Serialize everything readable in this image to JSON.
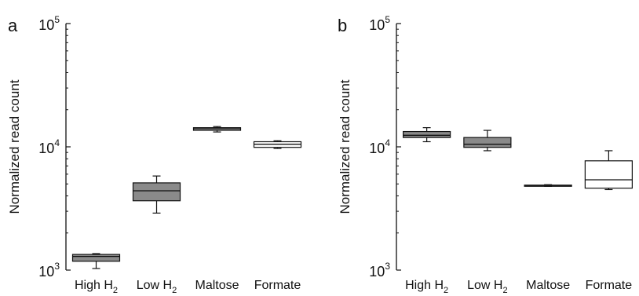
{
  "chart_data": [
    {
      "type": "boxplot",
      "panel_label": "a",
      "ylabel": "Normalized read count",
      "yscale": "log",
      "ylim": [
        1000,
        100000
      ],
      "yticks": [
        {
          "base": "10",
          "exp": "3",
          "value": 1000
        },
        {
          "base": "10",
          "exp": "4",
          "value": 10000
        },
        {
          "base": "10",
          "exp": "5",
          "value": 100000
        }
      ],
      "categories": [
        {
          "label": "High H",
          "sub": "2"
        },
        {
          "label": "Low H",
          "sub": "2"
        },
        {
          "label": "Maltose",
          "sub": ""
        },
        {
          "label": "Formate",
          "sub": ""
        }
      ],
      "boxes": [
        {
          "fill": "#8a8a8a",
          "min": 1030,
          "q1": 1180,
          "median": 1290,
          "q3": 1340,
          "max": 1360
        },
        {
          "fill": "#8a8a8a",
          "min": 2900,
          "q1": 3650,
          "median": 4400,
          "q3": 5100,
          "max": 5800
        },
        {
          "fill": "#d4d4d4",
          "min": 13200,
          "q1": 13600,
          "median": 14000,
          "q3": 14300,
          "max": 14600
        },
        {
          "fill": "#ffffff",
          "min": 9700,
          "q1": 9900,
          "median": 10500,
          "q3": 11000,
          "max": 11200
        }
      ]
    },
    {
      "type": "boxplot",
      "panel_label": "b",
      "ylabel": "Normalized read count",
      "yscale": "log",
      "ylim": [
        1000,
        100000
      ],
      "yticks": [
        {
          "base": "10",
          "exp": "3",
          "value": 1000
        },
        {
          "base": "10",
          "exp": "4",
          "value": 10000
        },
        {
          "base": "10",
          "exp": "5",
          "value": 100000
        }
      ],
      "categories": [
        {
          "label": "High H",
          "sub": "2"
        },
        {
          "label": "Low H",
          "sub": "2"
        },
        {
          "label": "Maltose",
          "sub": ""
        },
        {
          "label": "Formate",
          "sub": ""
        }
      ],
      "boxes": [
        {
          "fill": "#8a8a8a",
          "min": 11000,
          "q1": 11900,
          "median": 12400,
          "q3": 13300,
          "max": 14300
        },
        {
          "fill": "#8a8a8a",
          "min": 9300,
          "q1": 9900,
          "median": 10500,
          "q3": 11900,
          "max": 13600
        },
        {
          "fill": "#d4d4d4",
          "min": 4780,
          "q1": 4830,
          "median": 4860,
          "q3": 4890,
          "max": 4930
        },
        {
          "fill": "#ffffff",
          "min": 4500,
          "q1": 4620,
          "median": 5400,
          "q3": 7700,
          "max": 9300
        }
      ]
    }
  ]
}
